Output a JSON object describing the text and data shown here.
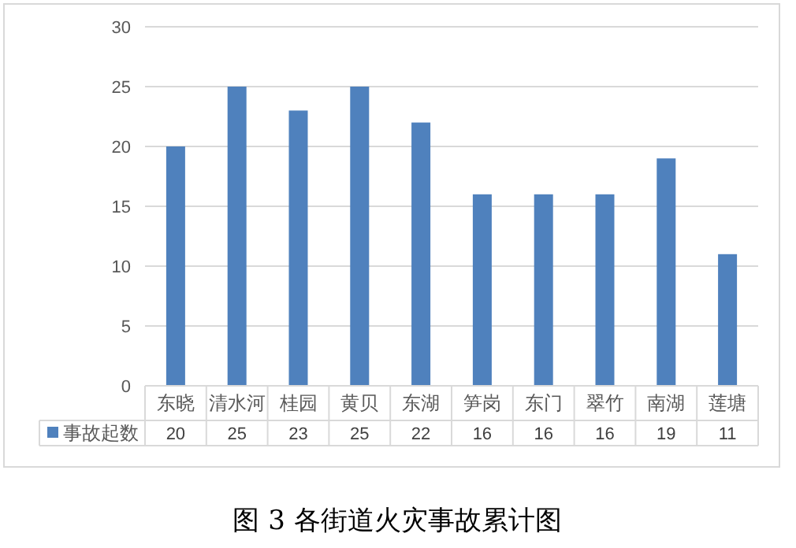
{
  "chart_data": {
    "type": "bar",
    "title": "图 3 各街道火灾事故累计图",
    "categories": [
      "东晓",
      "清水河",
      "桂园",
      "黄贝",
      "东湖",
      "笋岗",
      "东门",
      "翠竹",
      "南湖",
      "莲塘"
    ],
    "series": [
      {
        "name": "事故起数",
        "color": "#4f81bd",
        "values": [
          20,
          25,
          23,
          25,
          22,
          16,
          16,
          16,
          19,
          11
        ]
      }
    ],
    "ylim": [
      0,
      30
    ],
    "yticks": [
      0,
      5,
      10,
      15,
      20,
      25,
      30
    ],
    "grid": "y",
    "data_labels": true,
    "legend": "bottom"
  }
}
